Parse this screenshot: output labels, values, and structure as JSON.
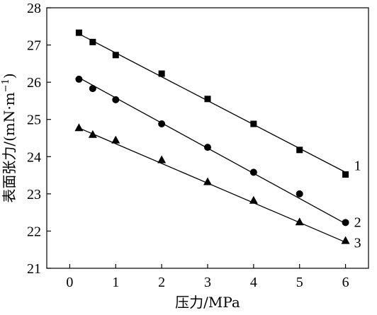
{
  "chart_data": {
    "type": "scatter",
    "xlabel": "压力/MPa",
    "ylabel_main": "表面张力/(mN·m",
    "ylabel_sup": "−1",
    "ylabel_close": ")",
    "xlim": [
      -0.5,
      6.5
    ],
    "ylim": [
      21,
      28
    ],
    "x_ticks": [
      0,
      1,
      2,
      3,
      4,
      5,
      6
    ],
    "y_ticks": [
      21,
      22,
      23,
      24,
      25,
      26,
      27,
      28
    ],
    "grid": false,
    "series": [
      {
        "label": "1",
        "marker": "square",
        "x": [
          0.2,
          0.5,
          1,
          2,
          3,
          4,
          5,
          6
        ],
        "y": [
          27.33,
          27.08,
          26.73,
          26.23,
          25.55,
          24.88,
          24.18,
          23.52
        ],
        "fit": [
          [
            0.2,
            27.3
          ],
          [
            6,
            23.58
          ]
        ]
      },
      {
        "label": "2",
        "marker": "circle",
        "x": [
          0.2,
          0.5,
          1,
          2,
          3,
          4,
          5,
          6
        ],
        "y": [
          26.08,
          25.83,
          25.53,
          24.88,
          24.25,
          23.58,
          23.0,
          22.23
        ],
        "fit": [
          [
            0.2,
            26.12
          ],
          [
            6,
            22.2
          ]
        ]
      },
      {
        "label": "3",
        "marker": "triangle",
        "x": [
          0.2,
          0.5,
          1,
          2,
          3,
          4,
          5,
          6
        ],
        "y": [
          24.78,
          24.6,
          24.45,
          23.92,
          23.33,
          22.83,
          22.25,
          21.75
        ],
        "fit": [
          [
            0.2,
            24.77
          ],
          [
            6,
            21.7
          ]
        ]
      }
    ]
  }
}
